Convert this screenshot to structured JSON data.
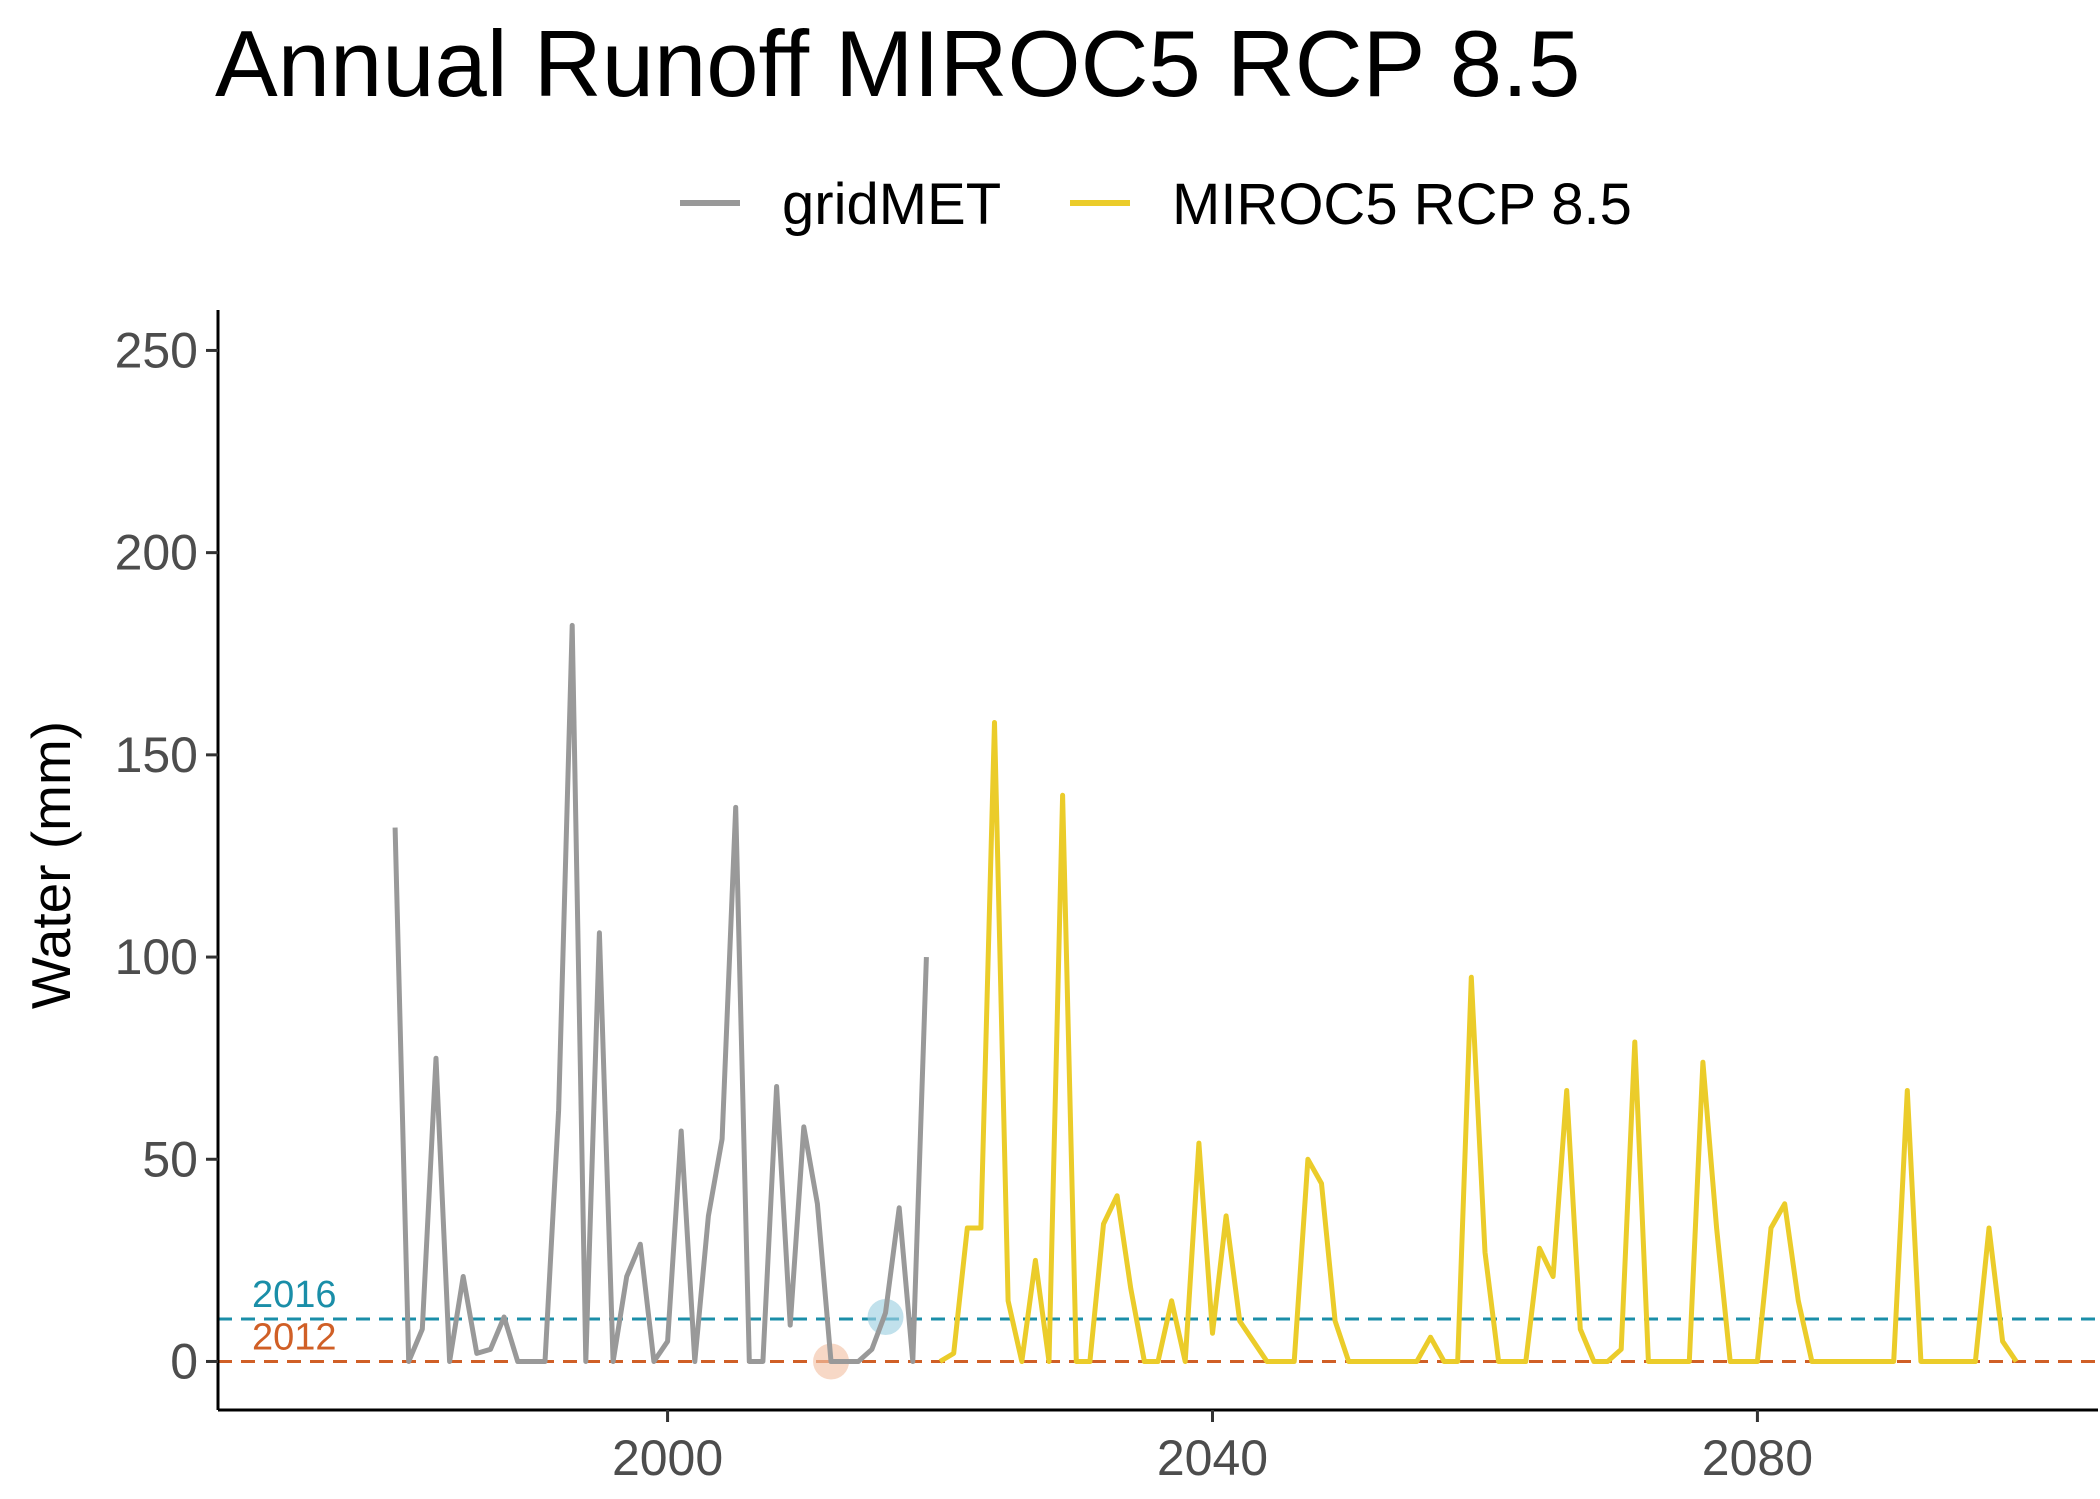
{
  "chart_data": {
    "type": "line",
    "title": "Annual Runoff MIROC5 RCP 8.5",
    "xlabel": "",
    "ylabel": "Water (mm)",
    "xlim": [
      1967,
      2105
    ],
    "ylim": [
      -12,
      260
    ],
    "xticks": [
      2000,
      2040,
      2080
    ],
    "yticks": [
      0,
      50,
      100,
      150,
      200,
      250
    ],
    "legend_position": "top",
    "grid": false,
    "series": [
      {
        "name": "gridMET",
        "color": "#999999",
        "x": [
          1980,
          1981,
          1982,
          1983,
          1984,
          1985,
          1986,
          1987,
          1988,
          1989,
          1990,
          1991,
          1992,
          1993,
          1994,
          1995,
          1996,
          1997,
          1998,
          1999,
          2000,
          2001,
          2002,
          2003,
          2004,
          2005,
          2006,
          2007,
          2008,
          2009,
          2010,
          2011,
          2012,
          2013,
          2014,
          2015,
          2016,
          2017,
          2018,
          2019
        ],
        "y": [
          132,
          0,
          8,
          75,
          0,
          21,
          2,
          3,
          11,
          0,
          0,
          0,
          62,
          182,
          0,
          106,
          0,
          21,
          29,
          0,
          5,
          57,
          0,
          36,
          55,
          137,
          0,
          0,
          68,
          9,
          58,
          39,
          0,
          0,
          0,
          3,
          12,
          38,
          0,
          100
        ]
      },
      {
        "name": "MIROC5 RCP 8.5",
        "color": "#EBCC2A",
        "x": [
          2020,
          2021,
          2022,
          2023,
          2024,
          2025,
          2026,
          2027,
          2028,
          2029,
          2030,
          2031,
          2032,
          2033,
          2034,
          2035,
          2036,
          2037,
          2038,
          2039,
          2040,
          2041,
          2042,
          2043,
          2044,
          2045,
          2046,
          2047,
          2048,
          2049,
          2050,
          2051,
          2052,
          2053,
          2054,
          2055,
          2056,
          2057,
          2058,
          2059,
          2060,
          2061,
          2062,
          2063,
          2064,
          2065,
          2066,
          2067,
          2068,
          2069,
          2070,
          2071,
          2072,
          2073,
          2074,
          2075,
          2076,
          2077,
          2078,
          2079,
          2080,
          2081,
          2082,
          2083,
          2084,
          2085,
          2086,
          2087,
          2088,
          2089,
          2090,
          2091,
          2092,
          2093,
          2094,
          2095,
          2096,
          2097,
          2098,
          2099
        ],
        "y": [
          0,
          2,
          33,
          33,
          158,
          15,
          0,
          25,
          0,
          140,
          0,
          0,
          34,
          41,
          18,
          0,
          0,
          15,
          0,
          54,
          7,
          36,
          10,
          5,
          0,
          0,
          0,
          50,
          44,
          10,
          0,
          0,
          0,
          0,
          0,
          0,
          6,
          0,
          0,
          95,
          27,
          0,
          0,
          0,
          28,
          21,
          67,
          8,
          0,
          0,
          3,
          79,
          0,
          0,
          0,
          0,
          74,
          33,
          0,
          0,
          0,
          33,
          39,
          15,
          0,
          0,
          0,
          0,
          0,
          0,
          0,
          67,
          0,
          0,
          0,
          0,
          0,
          33,
          5,
          0
        ]
      }
    ],
    "reference_lines": [
      {
        "label": "2016",
        "value": 10.5,
        "color": "#1A8EA8"
      },
      {
        "label": "2012",
        "value": 0,
        "color": "#D05F26"
      }
    ],
    "highlight_points": [
      {
        "x": 2016,
        "y": 11,
        "color": "#9FD1E2"
      },
      {
        "x": 2012,
        "y": 0,
        "color": "#F3C3A8"
      }
    ]
  }
}
